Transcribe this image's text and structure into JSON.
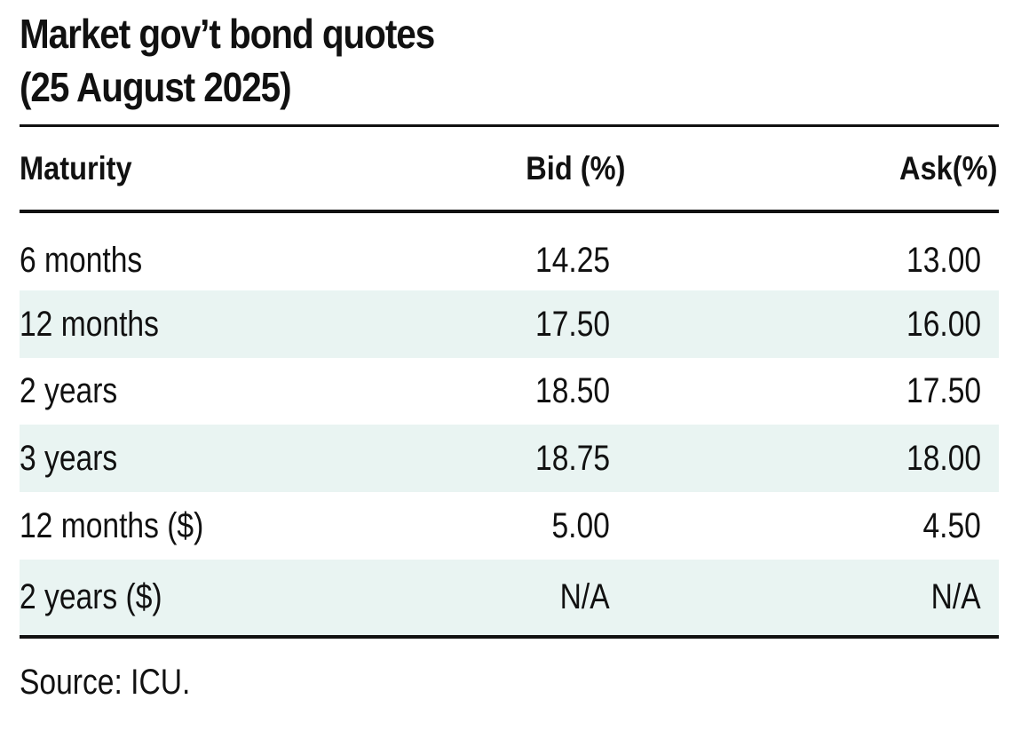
{
  "title": {
    "line1": "Market gov’t bond quotes",
    "line2": "(25 August 2025)"
  },
  "table": {
    "headers": {
      "maturity": "Maturity",
      "bid": "Bid (%)",
      "ask": "Ask(%)"
    },
    "rows": [
      {
        "maturity": "6 months",
        "bid": "14.25",
        "ask": "13.00",
        "shaded": false
      },
      {
        "maturity": "12 months",
        "bid": "17.50",
        "ask": "16.00",
        "shaded": true
      },
      {
        "maturity": "2 years",
        "bid": "18.50",
        "ask": "17.50",
        "shaded": false
      },
      {
        "maturity": "3 years",
        "bid": "18.75",
        "ask": "18.00",
        "shaded": true
      },
      {
        "maturity": "12 months ($)",
        "bid": "5.00",
        "ask": "4.50",
        "shaded": false
      },
      {
        "maturity": "2 years ($)",
        "bid": "N/A",
        "ask": "N/A",
        "shaded": true
      }
    ]
  },
  "source": "Source: ICU.",
  "colors": {
    "text": "#111111",
    "row_shade": "#e9f4f2",
    "rule": "#111111"
  }
}
